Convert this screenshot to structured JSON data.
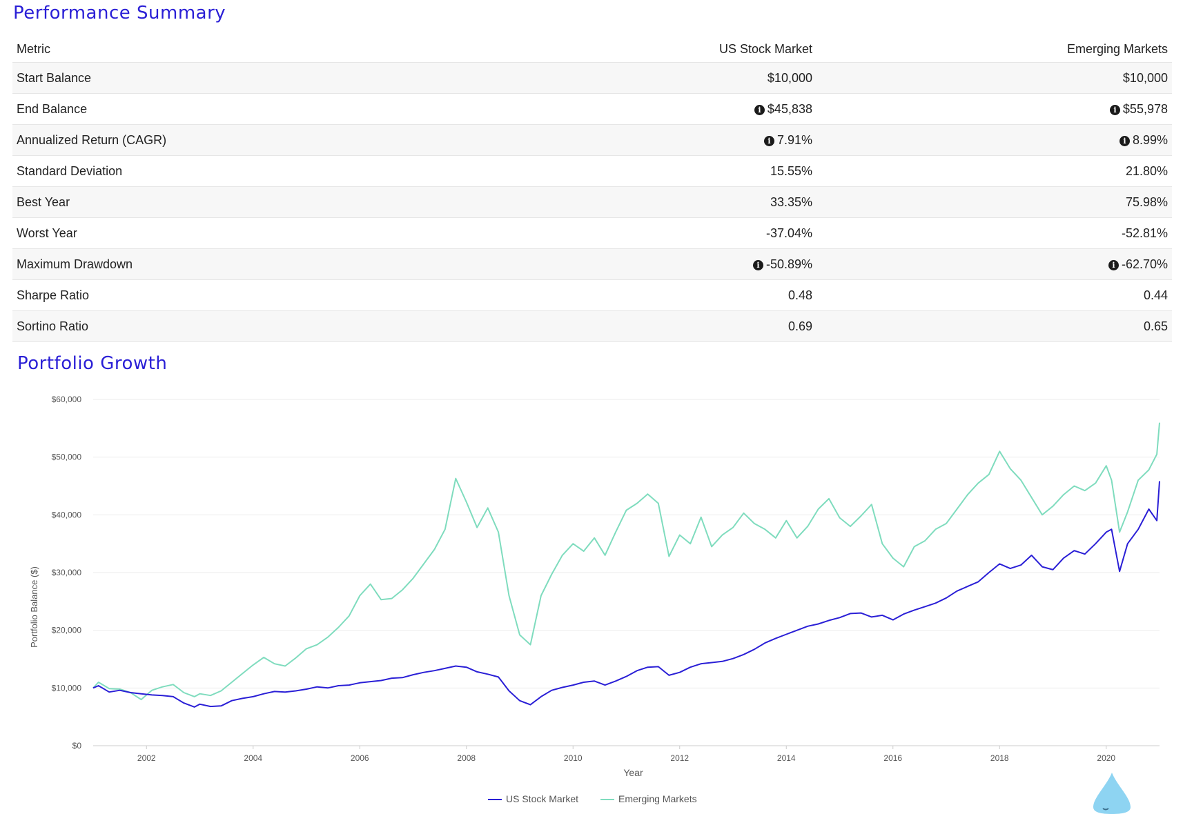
{
  "summary": {
    "title": "Performance Summary",
    "columns": [
      "Metric",
      "US Stock Market",
      "Emerging Markets"
    ],
    "rows": [
      {
        "metric": "Start Balance",
        "us": "$10,000",
        "em": "$10,000",
        "info": false
      },
      {
        "metric": "End Balance",
        "us": "$45,838",
        "em": "$55,978",
        "info": true
      },
      {
        "metric": "Annualized Return (CAGR)",
        "us": "7.91%",
        "em": "8.99%",
        "info": true
      },
      {
        "metric": "Standard Deviation",
        "us": "15.55%",
        "em": "21.80%",
        "info": false
      },
      {
        "metric": "Best Year",
        "us": "33.35%",
        "em": "75.98%",
        "info": false
      },
      {
        "metric": "Worst Year",
        "us": "-37.04%",
        "em": "-52.81%",
        "info": false
      },
      {
        "metric": "Maximum Drawdown",
        "us": "-50.89%",
        "em": "-62.70%",
        "info": true
      },
      {
        "metric": "Sharpe Ratio",
        "us": "0.48",
        "em": "0.44",
        "info": false
      },
      {
        "metric": "Sortino Ratio",
        "us": "0.69",
        "em": "0.65",
        "info": false
      }
    ]
  },
  "growth": {
    "title": "Portfolio Growth"
  },
  "chart_data": {
    "type": "line",
    "title": "Portfolio Growth",
    "xlabel": "Year",
    "ylabel": "Portfolio Balance ($)",
    "xlim": [
      2001.0,
      2021.0
    ],
    "ylim": [
      0,
      60000
    ],
    "x_ticks": [
      2002,
      2004,
      2006,
      2008,
      2010,
      2012,
      2014,
      2016,
      2018,
      2020
    ],
    "y_ticks": [
      0,
      10000,
      20000,
      30000,
      40000,
      50000,
      60000
    ],
    "y_tick_labels": [
      "$0",
      "$10,000",
      "$20,000",
      "$30,000",
      "$40,000",
      "$50,000",
      "$60,000"
    ],
    "grid": true,
    "legend_position": "bottom",
    "series": [
      {
        "name": "US Stock Market",
        "color": "#2a1fd6",
        "points": [
          [
            2001.0,
            10000
          ],
          [
            2001.1,
            10400
          ],
          [
            2001.3,
            9300
          ],
          [
            2001.5,
            9600
          ],
          [
            2001.7,
            9200
          ],
          [
            2001.9,
            9000
          ],
          [
            2002.1,
            8800
          ],
          [
            2002.3,
            8700
          ],
          [
            2002.5,
            8500
          ],
          [
            2002.7,
            7400
          ],
          [
            2002.9,
            6700
          ],
          [
            2003.0,
            7200
          ],
          [
            2003.2,
            6800
          ],
          [
            2003.4,
            6900
          ],
          [
            2003.6,
            7800
          ],
          [
            2003.8,
            8200
          ],
          [
            2004.0,
            8500
          ],
          [
            2004.2,
            9000
          ],
          [
            2004.4,
            9400
          ],
          [
            2004.6,
            9300
          ],
          [
            2004.8,
            9500
          ],
          [
            2005.0,
            9800
          ],
          [
            2005.2,
            10200
          ],
          [
            2005.4,
            10000
          ],
          [
            2005.6,
            10400
          ],
          [
            2005.8,
            10500
          ],
          [
            2006.0,
            10900
          ],
          [
            2006.2,
            11100
          ],
          [
            2006.4,
            11300
          ],
          [
            2006.6,
            11700
          ],
          [
            2006.8,
            11800
          ],
          [
            2007.0,
            12300
          ],
          [
            2007.2,
            12700
          ],
          [
            2007.4,
            13000
          ],
          [
            2007.6,
            13400
          ],
          [
            2007.8,
            13800
          ],
          [
            2008.0,
            13600
          ],
          [
            2008.2,
            12800
          ],
          [
            2008.4,
            12400
          ],
          [
            2008.6,
            11900
          ],
          [
            2008.8,
            9500
          ],
          [
            2009.0,
            7800
          ],
          [
            2009.2,
            7100
          ],
          [
            2009.4,
            8500
          ],
          [
            2009.6,
            9600
          ],
          [
            2009.8,
            10100
          ],
          [
            2010.0,
            10500
          ],
          [
            2010.2,
            11000
          ],
          [
            2010.4,
            11200
          ],
          [
            2010.6,
            10500
          ],
          [
            2010.8,
            11200
          ],
          [
            2011.0,
            12000
          ],
          [
            2011.2,
            13000
          ],
          [
            2011.4,
            13600
          ],
          [
            2011.6,
            13700
          ],
          [
            2011.8,
            12200
          ],
          [
            2012.0,
            12700
          ],
          [
            2012.2,
            13600
          ],
          [
            2012.4,
            14200
          ],
          [
            2012.6,
            14400
          ],
          [
            2012.8,
            14600
          ],
          [
            2013.0,
            15100
          ],
          [
            2013.2,
            15800
          ],
          [
            2013.4,
            16700
          ],
          [
            2013.6,
            17800
          ],
          [
            2013.8,
            18600
          ],
          [
            2014.0,
            19300
          ],
          [
            2014.2,
            20000
          ],
          [
            2014.4,
            20700
          ],
          [
            2014.6,
            21100
          ],
          [
            2014.8,
            21700
          ],
          [
            2015.0,
            22200
          ],
          [
            2015.2,
            22900
          ],
          [
            2015.4,
            23000
          ],
          [
            2015.6,
            22300
          ],
          [
            2015.8,
            22600
          ],
          [
            2016.0,
            21800
          ],
          [
            2016.2,
            22800
          ],
          [
            2016.4,
            23500
          ],
          [
            2016.6,
            24100
          ],
          [
            2016.8,
            24700
          ],
          [
            2017.0,
            25600
          ],
          [
            2017.2,
            26800
          ],
          [
            2017.4,
            27600
          ],
          [
            2017.6,
            28400
          ],
          [
            2017.8,
            30000
          ],
          [
            2018.0,
            31500
          ],
          [
            2018.2,
            30700
          ],
          [
            2018.4,
            31300
          ],
          [
            2018.6,
            33000
          ],
          [
            2018.8,
            31000
          ],
          [
            2019.0,
            30500
          ],
          [
            2019.2,
            32500
          ],
          [
            2019.4,
            33800
          ],
          [
            2019.6,
            33200
          ],
          [
            2019.8,
            35000
          ],
          [
            2020.0,
            37000
          ],
          [
            2020.1,
            37500
          ],
          [
            2020.25,
            30200
          ],
          [
            2020.4,
            35000
          ],
          [
            2020.6,
            37500
          ],
          [
            2020.8,
            41000
          ],
          [
            2020.95,
            39000
          ],
          [
            2021.0,
            45838
          ]
        ]
      },
      {
        "name": "Emerging Markets",
        "color": "#7fdcbe",
        "points": [
          [
            2001.0,
            10000
          ],
          [
            2001.1,
            11000
          ],
          [
            2001.3,
            9900
          ],
          [
            2001.5,
            9800
          ],
          [
            2001.7,
            9200
          ],
          [
            2001.9,
            8000
          ],
          [
            2002.1,
            9600
          ],
          [
            2002.3,
            10200
          ],
          [
            2002.5,
            10600
          ],
          [
            2002.7,
            9200
          ],
          [
            2002.9,
            8500
          ],
          [
            2003.0,
            9000
          ],
          [
            2003.2,
            8700
          ],
          [
            2003.4,
            9500
          ],
          [
            2003.6,
            11000
          ],
          [
            2003.8,
            12500
          ],
          [
            2004.0,
            14000
          ],
          [
            2004.2,
            15300
          ],
          [
            2004.4,
            14200
          ],
          [
            2004.6,
            13800
          ],
          [
            2004.8,
            15200
          ],
          [
            2005.0,
            16800
          ],
          [
            2005.2,
            17500
          ],
          [
            2005.4,
            18800
          ],
          [
            2005.6,
            20500
          ],
          [
            2005.8,
            22500
          ],
          [
            2006.0,
            26000
          ],
          [
            2006.2,
            28000
          ],
          [
            2006.4,
            25300
          ],
          [
            2006.6,
            25500
          ],
          [
            2006.8,
            27000
          ],
          [
            2007.0,
            29000
          ],
          [
            2007.2,
            31500
          ],
          [
            2007.4,
            34000
          ],
          [
            2007.6,
            37500
          ],
          [
            2007.8,
            46300
          ],
          [
            2008.0,
            42200
          ],
          [
            2008.2,
            37800
          ],
          [
            2008.4,
            41200
          ],
          [
            2008.6,
            37000
          ],
          [
            2008.8,
            26000
          ],
          [
            2009.0,
            19200
          ],
          [
            2009.2,
            17500
          ],
          [
            2009.4,
            26000
          ],
          [
            2009.6,
            29700
          ],
          [
            2009.8,
            33000
          ],
          [
            2010.0,
            35000
          ],
          [
            2010.2,
            33700
          ],
          [
            2010.4,
            36000
          ],
          [
            2010.6,
            33000
          ],
          [
            2010.8,
            37000
          ],
          [
            2011.0,
            40800
          ],
          [
            2011.2,
            42000
          ],
          [
            2011.4,
            43600
          ],
          [
            2011.6,
            42000
          ],
          [
            2011.8,
            32800
          ],
          [
            2012.0,
            36500
          ],
          [
            2012.2,
            35000
          ],
          [
            2012.4,
            39600
          ],
          [
            2012.6,
            34500
          ],
          [
            2012.8,
            36500
          ],
          [
            2013.0,
            37800
          ],
          [
            2013.2,
            40300
          ],
          [
            2013.4,
            38500
          ],
          [
            2013.6,
            37500
          ],
          [
            2013.8,
            36000
          ],
          [
            2014.0,
            39000
          ],
          [
            2014.2,
            36000
          ],
          [
            2014.4,
            38000
          ],
          [
            2014.6,
            41000
          ],
          [
            2014.8,
            42800
          ],
          [
            2015.0,
            39500
          ],
          [
            2015.2,
            38000
          ],
          [
            2015.4,
            39800
          ],
          [
            2015.6,
            41800
          ],
          [
            2015.8,
            35000
          ],
          [
            2016.0,
            32500
          ],
          [
            2016.2,
            31000
          ],
          [
            2016.4,
            34500
          ],
          [
            2016.6,
            35500
          ],
          [
            2016.8,
            37500
          ],
          [
            2017.0,
            38500
          ],
          [
            2017.2,
            41000
          ],
          [
            2017.4,
            43500
          ],
          [
            2017.6,
            45500
          ],
          [
            2017.8,
            47000
          ],
          [
            2018.0,
            51000
          ],
          [
            2018.2,
            48000
          ],
          [
            2018.4,
            46000
          ],
          [
            2018.6,
            43000
          ],
          [
            2018.8,
            40000
          ],
          [
            2019.0,
            41500
          ],
          [
            2019.2,
            43500
          ],
          [
            2019.4,
            45000
          ],
          [
            2019.6,
            44200
          ],
          [
            2019.8,
            45500
          ],
          [
            2020.0,
            48500
          ],
          [
            2020.1,
            46000
          ],
          [
            2020.25,
            37000
          ],
          [
            2020.4,
            40500
          ],
          [
            2020.6,
            46000
          ],
          [
            2020.8,
            47800
          ],
          [
            2020.95,
            50500
          ],
          [
            2021.0,
            55978
          ]
        ]
      }
    ]
  }
}
